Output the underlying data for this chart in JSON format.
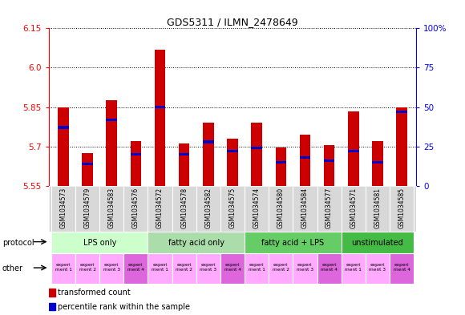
{
  "title": "GDS5311 / ILMN_2478649",
  "samples": [
    "GSM1034573",
    "GSM1034579",
    "GSM1034583",
    "GSM1034576",
    "GSM1034572",
    "GSM1034578",
    "GSM1034582",
    "GSM1034575",
    "GSM1034574",
    "GSM1034580",
    "GSM1034584",
    "GSM1034577",
    "GSM1034571",
    "GSM1034581",
    "GSM1034585"
  ],
  "transformed_counts": [
    5.85,
    5.675,
    5.875,
    5.72,
    6.07,
    5.71,
    5.79,
    5.73,
    5.79,
    5.695,
    5.745,
    5.705,
    5.835,
    5.72,
    5.85
  ],
  "percentile_ranks": [
    37,
    14,
    42,
    20,
    50,
    20,
    28,
    22,
    24,
    15,
    18,
    16,
    22,
    15,
    47
  ],
  "ymin": 5.55,
  "ymax": 6.15,
  "yticks": [
    5.55,
    5.7,
    5.85,
    6.0,
    6.15
  ],
  "right_yticks": [
    0,
    25,
    50,
    75,
    100
  ],
  "protocols": [
    {
      "label": "LPS only",
      "start": 0,
      "end": 4,
      "color": "#ccffcc"
    },
    {
      "label": "fatty acid only",
      "start": 4,
      "end": 8,
      "color": "#aaddaa"
    },
    {
      "label": "fatty acid + LPS",
      "start": 8,
      "end": 12,
      "color": "#66cc66"
    },
    {
      "label": "unstimulated",
      "start": 12,
      "end": 15,
      "color": "#44bb44"
    }
  ],
  "other_colors": [
    "#ffaaff",
    "#ffaaff",
    "#ffaaff",
    "#dd66dd",
    "#ffaaff",
    "#ffaaff",
    "#ffaaff",
    "#dd66dd",
    "#ffaaff",
    "#ffaaff",
    "#ffaaff",
    "#dd66dd",
    "#ffaaff",
    "#ffaaff",
    "#dd66dd"
  ],
  "other_labels": [
    "experi\nment 1",
    "experi\nment 2",
    "experi\nment 3",
    "experi\nment 4",
    "experi\nment 1",
    "experi\nment 2",
    "experi\nment 3",
    "experi\nment 4",
    "experi\nment 1",
    "experi\nment 2",
    "experi\nment 3",
    "experi\nment 4",
    "experi\nment 1",
    "experi\nment 3",
    "experi\nment 4"
  ],
  "bar_color": "#cc0000",
  "dot_color": "#0000cc",
  "bg_color": "#d8d8d8",
  "bar_width": 0.45
}
